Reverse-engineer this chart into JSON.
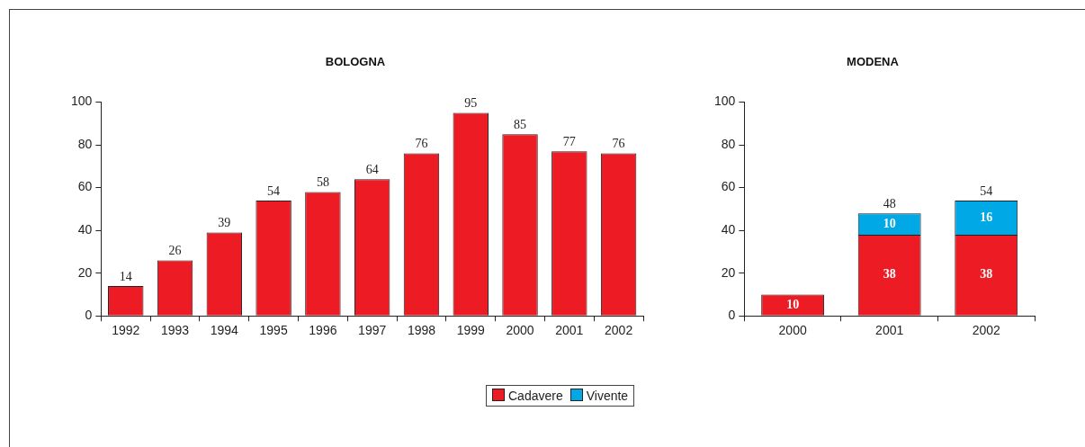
{
  "chart_data": [
    {
      "type": "bar",
      "title": "BOLOGNA",
      "categories": [
        "1992",
        "1993",
        "1994",
        "1995",
        "1996",
        "1997",
        "1998",
        "1999",
        "2000",
        "2001",
        "2002"
      ],
      "values": [
        14,
        26,
        39,
        54,
        58,
        64,
        76,
        95,
        85,
        77,
        76
      ],
      "color": "#ed1c24",
      "ylim": [
        0,
        100
      ],
      "yticks": [
        0,
        20,
        40,
        60,
        80,
        100
      ],
      "data_labels": true
    },
    {
      "type": "bar",
      "title": "MODENA",
      "categories": [
        "2000",
        "2001",
        "2002"
      ],
      "stacked": true,
      "series": [
        {
          "name": "Cadavere",
          "color": "#ed1c24",
          "values": [
            10,
            38,
            38
          ]
        },
        {
          "name": "Vivente",
          "color": "#00a8e6",
          "values": [
            null,
            10,
            16
          ]
        }
      ],
      "totals": [
        null,
        "48",
        "54"
      ],
      "ylim": [
        0,
        100
      ],
      "yticks": [
        0,
        20,
        40,
        60,
        80,
        100
      ],
      "data_labels": true,
      "legend": "bottom"
    }
  ]
}
